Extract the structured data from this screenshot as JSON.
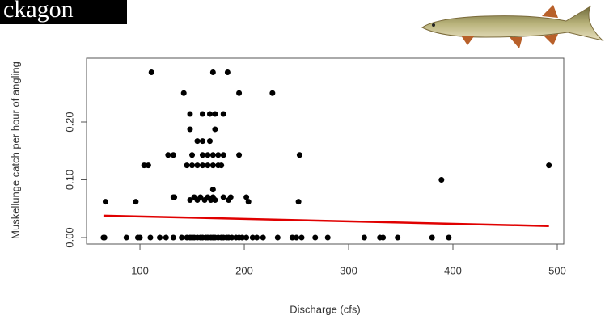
{
  "chart_data": {
    "type": "scatter",
    "title": "ckagon",
    "xlabel": "Discharge (cfs)",
    "ylabel": "Muskellunge catch per hour of angling",
    "xlim": [
      48.8,
      506.2
    ],
    "ylim": [
      -0.0112,
      0.3105
    ],
    "xticks": [
      100,
      200,
      300,
      400,
      500
    ],
    "yticks": [
      {
        "value": 0,
        "label": "0.00"
      },
      {
        "value": 0.1,
        "label": "0.10"
      },
      {
        "value": 0.2,
        "label": "0.20"
      }
    ],
    "points": {
      "color": "#000000",
      "x": [
        65,
        66,
        87,
        98,
        100,
        110,
        119,
        125,
        132,
        140,
        145,
        148,
        150,
        152,
        155,
        158,
        160,
        163,
        165,
        168,
        170,
        172,
        175,
        178,
        180,
        183,
        185,
        188,
        192,
        195,
        198,
        202,
        208,
        212,
        218,
        232,
        246,
        250,
        255,
        268,
        280,
        315,
        330,
        333,
        347,
        380,
        396,
        67,
        96,
        132,
        133,
        148,
        152,
        155,
        158,
        162,
        165,
        168,
        170,
        172,
        180,
        185,
        187,
        202,
        204,
        252,
        170,
        389,
        104,
        108,
        145,
        150,
        155,
        160,
        165,
        170,
        175,
        178,
        492,
        127,
        132,
        150,
        160,
        165,
        170,
        175,
        180,
        195,
        253,
        155,
        160,
        167,
        148,
        172,
        148,
        160,
        167,
        172,
        180,
        142,
        195,
        227,
        111,
        170,
        184
      ],
      "values": [
        0,
        0,
        0,
        0,
        0,
        0,
        0,
        0,
        0,
        0,
        0,
        0,
        0,
        0,
        0,
        0,
        0,
        0,
        0,
        0,
        0,
        0,
        0,
        0,
        0,
        0,
        0,
        0,
        0,
        0,
        0,
        0,
        0,
        0,
        0,
        0,
        0,
        0,
        0,
        0,
        0,
        0,
        0,
        0,
        0,
        0,
        0,
        0.062,
        0.062,
        0.07,
        0.07,
        0.065,
        0.07,
        0.065,
        0.07,
        0.065,
        0.07,
        0.065,
        0.07,
        0.065,
        0.07,
        0.065,
        0.07,
        0.07,
        0.062,
        0.062,
        0.083,
        0.1,
        0.125,
        0.125,
        0.125,
        0.125,
        0.125,
        0.125,
        0.125,
        0.125,
        0.125,
        0.125,
        0.125,
        0.143,
        0.143,
        0.143,
        0.143,
        0.143,
        0.143,
        0.143,
        0.143,
        0.143,
        0.143,
        0.167,
        0.167,
        0.167,
        0.1875,
        0.1875,
        0.214,
        0.214,
        0.214,
        0.214,
        0.214,
        0.25,
        0.25,
        0.25,
        0.286,
        0.286,
        0.286
      ]
    },
    "trend": {
      "color": "#e00000",
      "x": [
        65,
        492
      ],
      "values": [
        0.038,
        0.02
      ]
    }
  }
}
